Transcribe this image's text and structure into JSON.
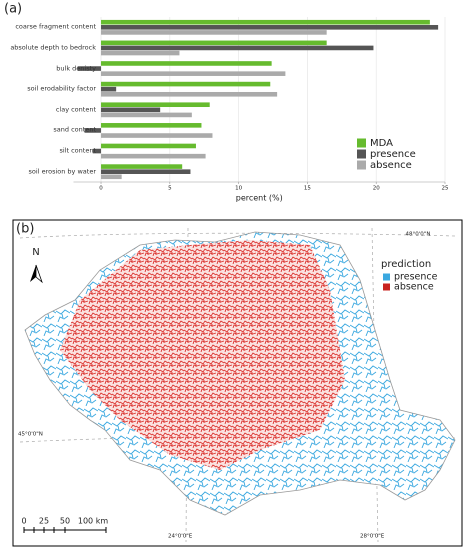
{
  "chart_data": {
    "type": "hbar",
    "panel_label": "(a)",
    "categories": [
      "coarse fragment content",
      "absolute depth to bedrock",
      "bulk denisty",
      "soil erodability factor",
      "clay content",
      "sand content",
      "silt content",
      "soil erosion by water"
    ],
    "series": [
      {
        "name": "MDA",
        "color": "#66bb2e",
        "values": [
          23.9,
          16.4,
          12.4,
          12.3,
          7.9,
          7.3,
          6.9,
          5.9
        ]
      },
      {
        "name": "presence",
        "color": "#555555",
        "values": [
          24.5,
          19.8,
          -1.7,
          1.1,
          4.3,
          -1.2,
          -0.6,
          6.5
        ]
      },
      {
        "name": "absence",
        "color": "#aaaaaa",
        "values": [
          16.4,
          5.7,
          13.4,
          12.8,
          6.6,
          8.1,
          7.6,
          1.5
        ]
      }
    ],
    "xlabel": "percent (%)",
    "xlim": [
      -2,
      25
    ],
    "xticks": [
      0,
      5,
      10,
      15,
      20,
      25
    ],
    "grid": true,
    "legend": "lower right"
  },
  "map": {
    "panel_label": "(b)",
    "north": "N",
    "legend": {
      "title": "prediction",
      "items": [
        {
          "name": "presence",
          "color": "#3aa8e0"
        },
        {
          "name": "absence",
          "color": "#c8231f"
        }
      ]
    },
    "scale_labels": [
      "0",
      "25",
      "50",
      "100 km"
    ],
    "graticule_labels": [
      "48°0'0\"N",
      "45°0'0\"N",
      "24°0'0\"E",
      "28°0'0\"E"
    ]
  }
}
